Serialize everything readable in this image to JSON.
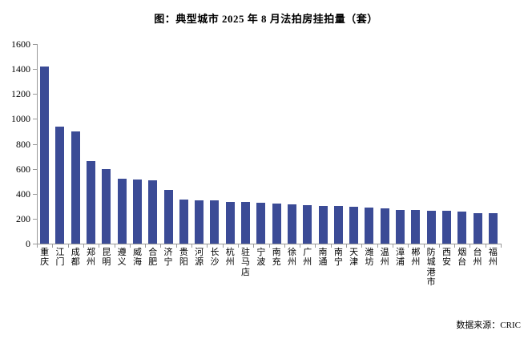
{
  "chart_title": "图：典型城市 2025 年 8 月法拍房挂拍量（套）",
  "source_note": "数据来源：CRIC",
  "colors": {
    "bar": "#3B4B96",
    "axis": "#999999",
    "text": "#000000",
    "background": "#FFFFFF"
  },
  "chart_data": {
    "type": "bar",
    "title": "图：典型城市 2025 年 8 月法拍房挂拍量（套）",
    "xlabel": "",
    "ylabel": "",
    "ylim": [
      0,
      1600
    ],
    "ytick_step": 200,
    "yticks": [
      0,
      200,
      400,
      600,
      800,
      1000,
      1200,
      1400,
      1600
    ],
    "grid": false,
    "legend_position": "none",
    "categories": [
      "重庆",
      "江门",
      "成都",
      "郑州",
      "昆明",
      "遵义",
      "威海",
      "合肥",
      "济宁",
      "贵阳",
      "河源",
      "长沙",
      "杭州",
      "驻马店",
      "宁波",
      "南充",
      "徐州",
      "广州",
      "南通",
      "南宁",
      "天津",
      "潍坊",
      "温州",
      "漳浦",
      "郴州",
      "防城港市",
      "西安",
      "烟台",
      "台州",
      "福州"
    ],
    "values": [
      1420,
      940,
      900,
      665,
      600,
      520,
      515,
      505,
      430,
      355,
      350,
      345,
      335,
      332,
      330,
      322,
      318,
      310,
      305,
      300,
      298,
      290,
      285,
      272,
      268,
      266,
      263,
      255,
      245,
      242
    ]
  }
}
